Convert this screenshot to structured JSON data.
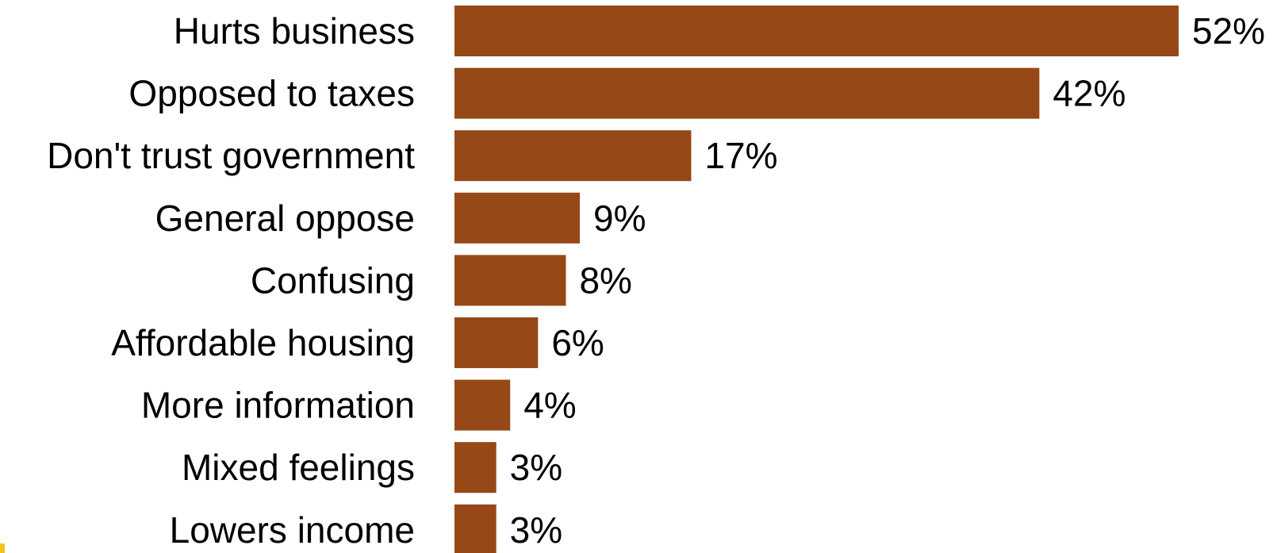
{
  "chart_data": {
    "type": "bar",
    "orientation": "horizontal",
    "categories": [
      "Hurts business",
      "Opposed to taxes",
      "Don't trust government",
      "General oppose",
      "Confusing",
      "Affordable housing",
      "More information",
      "Mixed feelings",
      "Lowers income"
    ],
    "values": [
      52,
      42,
      17,
      9,
      8,
      6,
      4,
      3,
      3
    ],
    "value_labels": [
      "52%",
      "42%",
      "17%",
      "9%",
      "8%",
      "6%",
      "4%",
      "3%",
      "3%"
    ],
    "unit": "%",
    "xlim": [
      0,
      52
    ],
    "grid": false,
    "legend": "none",
    "colors": {
      "bar": "#964816",
      "text": "#000000",
      "corner_accent": "#f2c418"
    }
  }
}
